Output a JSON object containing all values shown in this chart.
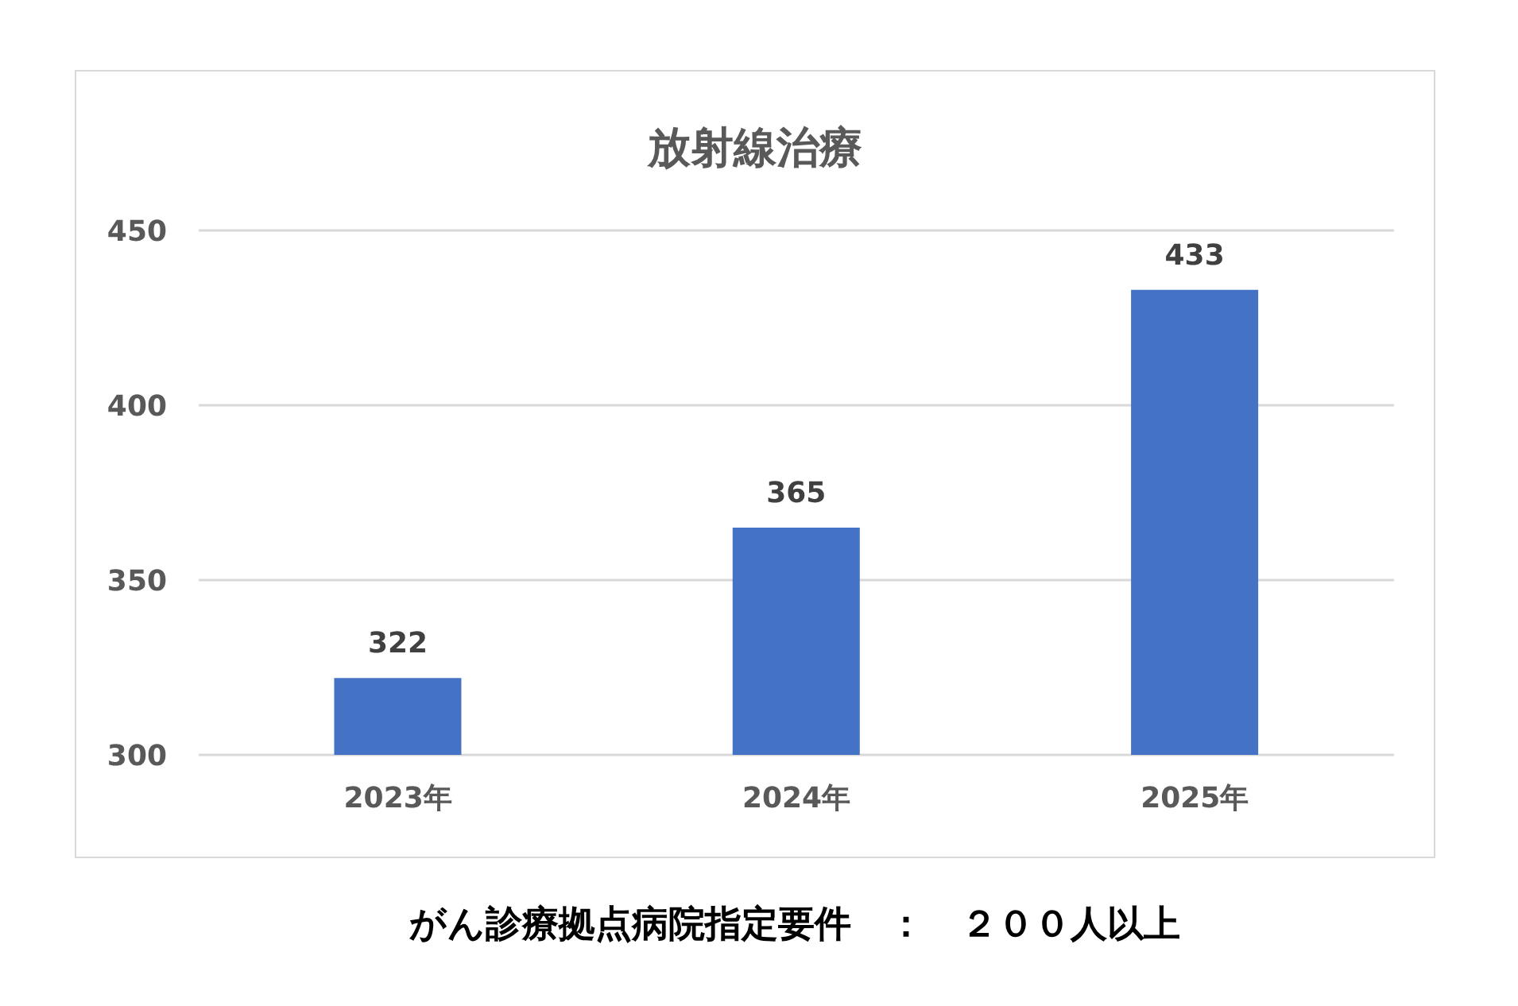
{
  "chart_data": {
    "type": "bar",
    "title": "放射線治療",
    "categories": [
      "2023年",
      "2024年",
      "2025年"
    ],
    "values": [
      322,
      365,
      433
    ],
    "color": "#4472c4",
    "ylim": [
      300,
      450
    ],
    "yticks": [
      300,
      350,
      400,
      450
    ],
    "grid": "y",
    "data_labels": true,
    "annotations": [
      "がん診療拠点病院指定要件　：　２００人以上"
    ]
  }
}
